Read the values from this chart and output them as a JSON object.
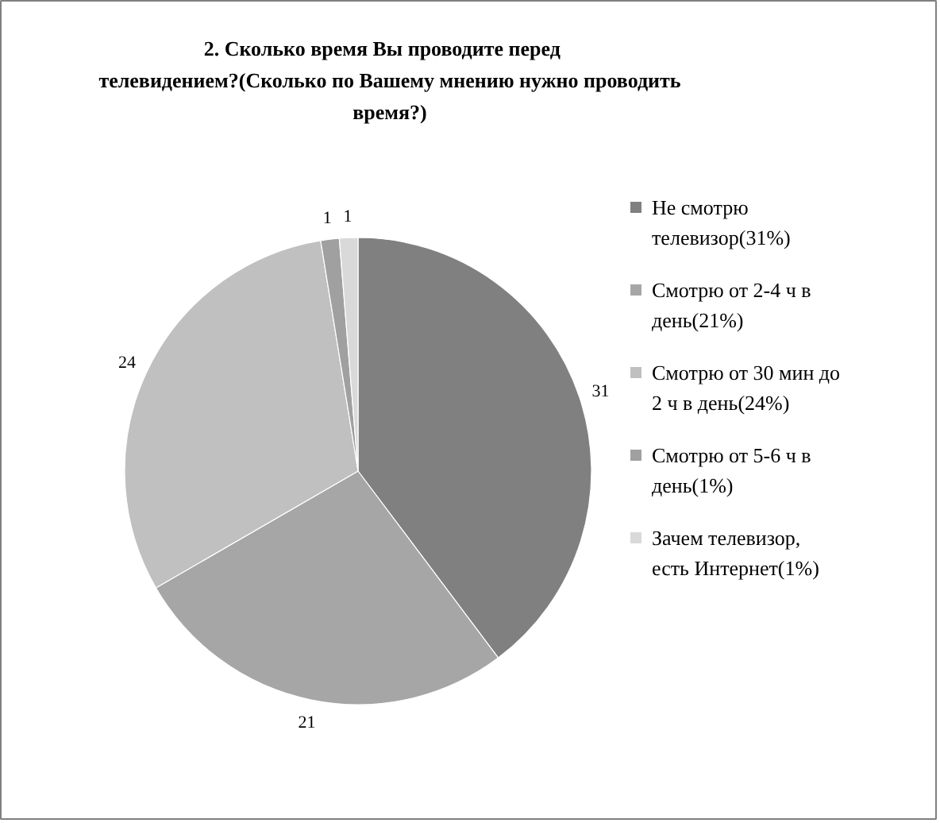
{
  "chart_data": {
    "type": "pie",
    "title": "2.    Сколько время Вы проводите перед телевидением?(Сколько по Вашему мнению нужно проводить время?)",
    "categories": [
      "Не смотрю телевизор(31%)",
      "Смотрю от 2-4 ч в день(21%)",
      "Смотрю от 30 мин до 2 ч в день(24%)",
      "Смотрю от 5-6 ч в день(1%)",
      "Зачем телевизор, есть Интернет(1%)"
    ],
    "values": [
      31,
      21,
      24,
      1,
      1
    ],
    "colors": [
      "#808080",
      "#a6a6a6",
      "#c0c0c0",
      "#a0a0a0",
      "#d9d9d9"
    ],
    "data_labels": true,
    "legend": "right"
  }
}
